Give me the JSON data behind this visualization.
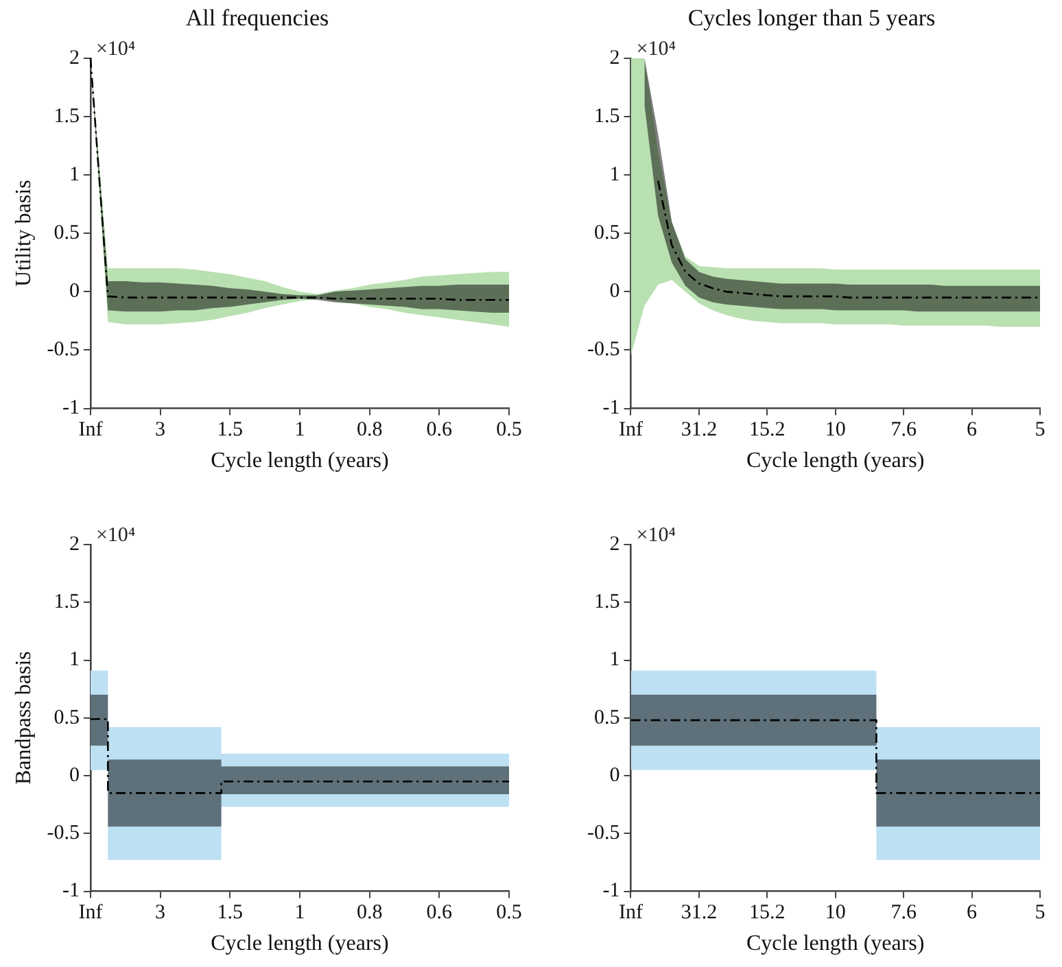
{
  "chart_data": [
    {
      "type": "line",
      "title": "All frequencies",
      "xlabel": "Cycle length (years)",
      "ylabel": "Utility basis",
      "annotations": [
        "×10⁴"
      ],
      "categories": [
        "Inf",
        null,
        null,
        null,
        "3",
        null,
        null,
        null,
        "1.5",
        null,
        null,
        null,
        "1",
        null,
        null,
        null,
        "0.8",
        null,
        null,
        null,
        "0.6",
        null,
        null,
        null,
        "0.5"
      ],
      "series": [
        {
          "color": "#b9e0b1",
          "values": [
            null,
            null,
            null,
            null,
            null,
            null,
            null,
            null,
            null,
            null,
            null,
            null,
            null,
            null,
            null,
            null,
            null,
            null,
            null,
            null,
            null,
            null,
            null,
            null,
            null
          ],
          "lower": [
            2,
            -0.26,
            -0.28,
            -0.28,
            -0.28,
            -0.27,
            -0.26,
            -0.24,
            -0.21,
            -0.18,
            -0.14,
            -0.11,
            -0.08,
            -0.06,
            -0.08,
            -0.1,
            -0.13,
            -0.15,
            -0.18,
            -0.2,
            -0.22,
            -0.24,
            -0.26,
            -0.28,
            -0.3
          ],
          "upper": [
            2,
            0.2,
            0.2,
            0.2,
            0.2,
            0.2,
            0.19,
            0.17,
            0.15,
            0.12,
            0.09,
            0.04,
            0,
            -0.02,
            0.01,
            0.03,
            0.06,
            0.08,
            0.1,
            0.13,
            0.14,
            0.15,
            0.16,
            0.17,
            0.17
          ]
        },
        {
          "color": "#000000",
          "values": [
            2,
            -0.04,
            -0.05,
            -0.05,
            -0.05,
            -0.05,
            -0.05,
            -0.05,
            -0.05,
            -0.05,
            -0.05,
            -0.05,
            -0.05,
            -0.05,
            -0.06,
            -0.06,
            -0.06,
            -0.06,
            -0.06,
            -0.06,
            -0.06,
            -0.07,
            -0.07,
            -0.07,
            -0.07
          ],
          "lower": [
            2,
            -0.16,
            -0.17,
            -0.17,
            -0.17,
            -0.16,
            -0.16,
            -0.14,
            -0.13,
            -0.11,
            -0.09,
            -0.07,
            -0.06,
            -0.07,
            -0.09,
            -0.1,
            -0.11,
            -0.12,
            -0.13,
            -0.15,
            -0.15,
            -0.16,
            -0.17,
            -0.18,
            -0.18
          ],
          "upper": [
            2,
            0.09,
            0.09,
            0.08,
            0.08,
            0.07,
            0.06,
            0.05,
            0.03,
            0.02,
            0,
            -0.02,
            -0.03,
            -0.03,
            0,
            0.01,
            0.02,
            0.03,
            0.04,
            0.05,
            0.05,
            0.06,
            0.06,
            0.06,
            0.06
          ]
        }
      ],
      "ylim": [
        -1,
        2
      ],
      "yticks": [
        -1,
        -0.5,
        0,
        0.5,
        1,
        1.5,
        2
      ],
      "grid": false,
      "legend": false,
      "line_style": "dashed"
    },
    {
      "type": "line",
      "title": "Cycles longer than 5 years",
      "xlabel": "Cycle length (years)",
      "annotations": [
        "×10⁴"
      ],
      "categories": [
        "Inf",
        null,
        null,
        null,
        null,
        "31.2",
        null,
        null,
        null,
        null,
        "15.2",
        null,
        null,
        null,
        null,
        "10",
        null,
        null,
        null,
        null,
        "7.6",
        null,
        null,
        null,
        null,
        "6",
        null,
        null,
        null,
        null,
        "5"
      ],
      "series": [
        {
          "color": "#b9e0b1",
          "values": [
            null,
            null,
            null,
            null,
            null,
            null,
            null,
            null,
            null,
            null,
            null,
            null,
            null,
            null,
            null,
            null,
            null,
            null,
            null,
            null,
            null,
            null,
            null,
            null,
            null,
            null,
            null,
            null,
            null,
            null,
            null
          ],
          "lower": [
            -0.55,
            -0.12,
            0.06,
            0.1,
            0,
            -0.1,
            -0.16,
            -0.2,
            -0.23,
            -0.25,
            -0.26,
            -0.27,
            -0.27,
            -0.27,
            -0.27,
            -0.28,
            -0.28,
            -0.28,
            -0.28,
            -0.28,
            -0.29,
            -0.29,
            -0.29,
            -0.29,
            -0.29,
            -0.29,
            -0.29,
            -0.3,
            -0.3,
            -0.3,
            -0.3
          ],
          "upper": [
            2,
            2,
            1.2,
            0.6,
            0.3,
            0.22,
            0.21,
            0.2,
            0.2,
            0.2,
            0.2,
            0.2,
            0.2,
            0.2,
            0.2,
            0.19,
            0.19,
            0.19,
            0.19,
            0.19,
            0.19,
            0.19,
            0.19,
            0.19,
            0.19,
            0.19,
            0.19,
            0.19,
            0.19,
            0.19,
            0.19
          ]
        },
        {
          "color": "#000000",
          "values": [
            null,
            null,
            0.95,
            0.4,
            0.17,
            0.07,
            0.03,
            0,
            -0.01,
            -0.02,
            -0.03,
            -0.04,
            -0.04,
            -0.04,
            -0.04,
            -0.04,
            -0.05,
            -0.05,
            -0.05,
            -0.05,
            -0.05,
            -0.05,
            -0.05,
            -0.05,
            -0.05,
            -0.05,
            -0.05,
            -0.05,
            -0.05,
            -0.05,
            -0.05
          ],
          "lower": [
            null,
            1.6,
            0.65,
            0.25,
            0.05,
            -0.05,
            -0.09,
            -0.11,
            -0.12,
            -0.13,
            -0.14,
            -0.15,
            -0.15,
            -0.15,
            -0.15,
            -0.16,
            -0.16,
            -0.16,
            -0.16,
            -0.16,
            -0.16,
            -0.17,
            -0.17,
            -0.17,
            -0.17,
            -0.17,
            -0.17,
            -0.17,
            -0.17,
            -0.17,
            -0.17
          ],
          "upper": [
            null,
            2,
            1.35,
            0.6,
            0.28,
            0.17,
            0.13,
            0.11,
            0.1,
            0.09,
            0.08,
            0.07,
            0.07,
            0.07,
            0.07,
            0.07,
            0.06,
            0.06,
            0.06,
            0.06,
            0.06,
            0.06,
            0.06,
            0.05,
            0.05,
            0.05,
            0.05,
            0.05,
            0.05,
            0.05,
            0.05
          ]
        }
      ],
      "ylim": [
        -1,
        2
      ],
      "yticks": [
        -1,
        -0.5,
        0,
        0.5,
        1,
        1.5,
        2
      ],
      "grid": false,
      "legend": false,
      "line_style": "dashed"
    },
    {
      "type": "step",
      "xlabel": "Cycle length (years)",
      "ylabel": "Bandpass basis",
      "annotations": [
        "×10⁴"
      ],
      "categories": [
        "Inf",
        null,
        null,
        null,
        null,
        null,
        null,
        null,
        "3",
        null,
        null,
        null,
        null,
        null,
        null,
        null,
        "1.5",
        null,
        null,
        null,
        null,
        null,
        null,
        null,
        "1",
        null,
        null,
        null,
        null,
        null,
        null,
        null,
        "0.8",
        null,
        null,
        null,
        null,
        null,
        null,
        null,
        "0.6",
        null,
        null,
        null,
        null,
        null,
        null,
        null,
        "0.5"
      ],
      "series": [
        {
          "color": "#bde0f3",
          "values": [
            null,
            null,
            null,
            null,
            null,
            null,
            null,
            null,
            null,
            null,
            null,
            null,
            null,
            null,
            null,
            null,
            null,
            null,
            null,
            null,
            null,
            null,
            null,
            null,
            null,
            null,
            null,
            null,
            null,
            null,
            null,
            null,
            null,
            null,
            null,
            null,
            null,
            null,
            null,
            null,
            null,
            null,
            null,
            null,
            null,
            null,
            null,
            null,
            null
          ],
          "lower": [
            0.05,
            0.05,
            0.05,
            -0.73,
            -0.73,
            -0.73,
            -0.73,
            -0.73,
            -0.73,
            -0.73,
            -0.73,
            -0.73,
            -0.73,
            -0.73,
            -0.73,
            -0.73,
            -0.27,
            -0.27,
            -0.27,
            -0.27,
            -0.27,
            -0.27,
            -0.27,
            -0.27,
            -0.27,
            -0.27,
            -0.27,
            -0.27,
            -0.27,
            -0.27,
            -0.27,
            -0.27,
            -0.27,
            -0.27,
            -0.27,
            -0.27,
            -0.27,
            -0.27,
            -0.27,
            -0.27,
            -0.27,
            -0.27,
            -0.27,
            -0.27,
            -0.27,
            -0.27,
            -0.27,
            -0.27,
            -0.27
          ],
          "upper": [
            0.91,
            0.91,
            0.91,
            0.42,
            0.42,
            0.42,
            0.42,
            0.42,
            0.42,
            0.42,
            0.42,
            0.42,
            0.42,
            0.42,
            0.42,
            0.42,
            0.19,
            0.19,
            0.19,
            0.19,
            0.19,
            0.19,
            0.19,
            0.19,
            0.19,
            0.19,
            0.19,
            0.19,
            0.19,
            0.19,
            0.19,
            0.19,
            0.19,
            0.19,
            0.19,
            0.19,
            0.19,
            0.19,
            0.19,
            0.19,
            0.19,
            0.19,
            0.19,
            0.19,
            0.19,
            0.19,
            0.19,
            0.19,
            0.19
          ]
        },
        {
          "color": "#000000",
          "values": [
            0.49,
            0.49,
            0.49,
            -0.15,
            -0.15,
            -0.15,
            -0.15,
            -0.15,
            -0.15,
            -0.15,
            -0.15,
            -0.15,
            -0.15,
            -0.15,
            -0.15,
            -0.15,
            -0.05,
            -0.05,
            -0.05,
            -0.05,
            -0.05,
            -0.05,
            -0.05,
            -0.05,
            -0.05,
            -0.05,
            -0.05,
            -0.05,
            -0.05,
            -0.05,
            -0.05,
            -0.05,
            -0.05,
            -0.05,
            -0.05,
            -0.05,
            -0.05,
            -0.05,
            -0.05,
            -0.05,
            -0.05,
            -0.05,
            -0.05,
            -0.05,
            -0.05,
            -0.05,
            -0.05,
            -0.05,
            -0.05
          ],
          "lower": [
            0.26,
            0.26,
            0.26,
            -0.44,
            -0.44,
            -0.44,
            -0.44,
            -0.44,
            -0.44,
            -0.44,
            -0.44,
            -0.44,
            -0.44,
            -0.44,
            -0.44,
            -0.44,
            -0.16,
            -0.16,
            -0.16,
            -0.16,
            -0.16,
            -0.16,
            -0.16,
            -0.16,
            -0.16,
            -0.16,
            -0.16,
            -0.16,
            -0.16,
            -0.16,
            -0.16,
            -0.16,
            -0.16,
            -0.16,
            -0.16,
            -0.16,
            -0.16,
            -0.16,
            -0.16,
            -0.16,
            -0.16,
            -0.16,
            -0.16,
            -0.16,
            -0.16,
            -0.16,
            -0.16,
            -0.16,
            -0.16
          ],
          "upper": [
            0.7,
            0.7,
            0.7,
            0.14,
            0.14,
            0.14,
            0.14,
            0.14,
            0.14,
            0.14,
            0.14,
            0.14,
            0.14,
            0.14,
            0.14,
            0.14,
            0.08,
            0.08,
            0.08,
            0.08,
            0.08,
            0.08,
            0.08,
            0.08,
            0.08,
            0.08,
            0.08,
            0.08,
            0.08,
            0.08,
            0.08,
            0.08,
            0.08,
            0.08,
            0.08,
            0.08,
            0.08,
            0.08,
            0.08,
            0.08,
            0.08,
            0.08,
            0.08,
            0.08,
            0.08,
            0.08,
            0.08,
            0.08,
            0.08
          ]
        }
      ],
      "ylim": [
        -1,
        2
      ],
      "yticks": [
        -1,
        -0.5,
        0,
        0.5,
        1,
        1.5,
        2
      ],
      "grid": false,
      "legend": false,
      "line_style": "dashed"
    },
    {
      "type": "step",
      "xlabel": "Cycle length (years)",
      "annotations": [
        "×10⁴"
      ],
      "categories": [
        "Inf",
        null,
        null,
        null,
        null,
        "31.2",
        null,
        null,
        null,
        null,
        "15.2",
        null,
        null,
        null,
        null,
        "10",
        null,
        null,
        null,
        null,
        "7.6",
        null,
        null,
        null,
        null,
        "6",
        null,
        null,
        null,
        null,
        "5"
      ],
      "series": [
        {
          "color": "#bde0f3",
          "values": [
            null,
            null,
            null,
            null,
            null,
            null,
            null,
            null,
            null,
            null,
            null,
            null,
            null,
            null,
            null,
            null,
            null,
            null,
            null,
            null,
            null,
            null,
            null,
            null,
            null,
            null,
            null,
            null,
            null,
            null,
            null
          ],
          "lower": [
            0.05,
            0.05,
            0.05,
            0.05,
            0.05,
            0.05,
            0.05,
            0.05,
            0.05,
            0.05,
            0.05,
            0.05,
            0.05,
            0.05,
            0.05,
            0.05,
            0.05,
            0.05,
            0.05,
            -0.73,
            -0.73,
            -0.73,
            -0.73,
            -0.73,
            -0.73,
            -0.73,
            -0.73,
            -0.73,
            -0.73,
            -0.73,
            -0.73
          ],
          "upper": [
            0.91,
            0.91,
            0.91,
            0.91,
            0.91,
            0.91,
            0.91,
            0.91,
            0.91,
            0.91,
            0.91,
            0.91,
            0.91,
            0.91,
            0.91,
            0.91,
            0.91,
            0.91,
            0.91,
            0.42,
            0.42,
            0.42,
            0.42,
            0.42,
            0.42,
            0.42,
            0.42,
            0.42,
            0.42,
            0.42,
            0.42
          ]
        },
        {
          "color": "#000000",
          "values": [
            0.48,
            0.48,
            0.48,
            0.48,
            0.48,
            0.48,
            0.48,
            0.48,
            0.48,
            0.48,
            0.48,
            0.48,
            0.48,
            0.48,
            0.48,
            0.48,
            0.48,
            0.48,
            0.48,
            -0.15,
            -0.15,
            -0.15,
            -0.15,
            -0.15,
            -0.15,
            -0.15,
            -0.15,
            -0.15,
            -0.15,
            -0.15,
            -0.15
          ],
          "lower": [
            0.26,
            0.26,
            0.26,
            0.26,
            0.26,
            0.26,
            0.26,
            0.26,
            0.26,
            0.26,
            0.26,
            0.26,
            0.26,
            0.26,
            0.26,
            0.26,
            0.26,
            0.26,
            0.26,
            -0.44,
            -0.44,
            -0.44,
            -0.44,
            -0.44,
            -0.44,
            -0.44,
            -0.44,
            -0.44,
            -0.44,
            -0.44,
            -0.44
          ],
          "upper": [
            0.7,
            0.7,
            0.7,
            0.7,
            0.7,
            0.7,
            0.7,
            0.7,
            0.7,
            0.7,
            0.7,
            0.7,
            0.7,
            0.7,
            0.7,
            0.7,
            0.7,
            0.7,
            0.7,
            0.14,
            0.14,
            0.14,
            0.14,
            0.14,
            0.14,
            0.14,
            0.14,
            0.14,
            0.14,
            0.14,
            0.14
          ]
        }
      ],
      "ylim": [
        -1,
        2
      ],
      "yticks": [
        -1,
        -0.5,
        0,
        0.5,
        1,
        1.5,
        2
      ],
      "grid": false,
      "legend": false,
      "line_style": "dashed"
    }
  ]
}
